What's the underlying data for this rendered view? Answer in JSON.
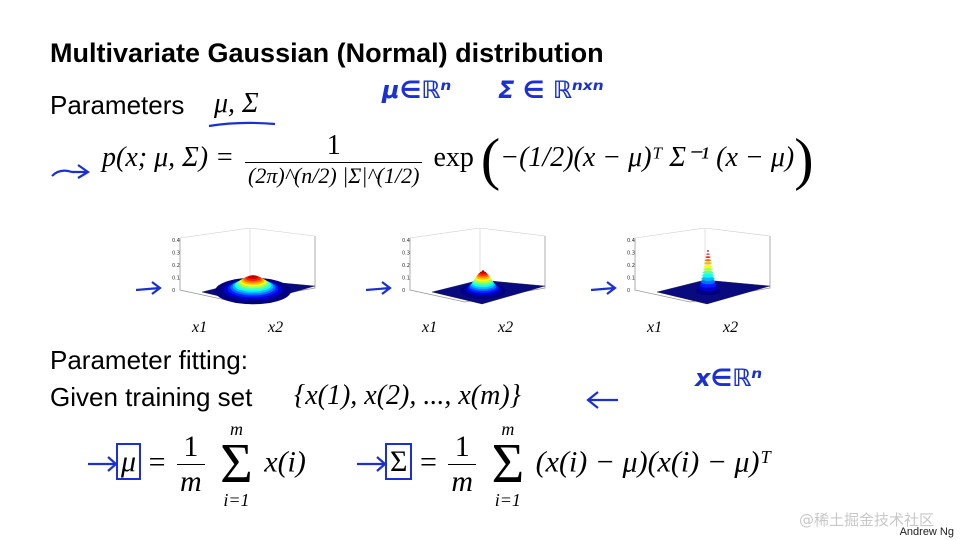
{
  "slide": {
    "title": "Multivariate Gaussian (Normal) distribution",
    "parameters_label": "Parameters",
    "parameters_symbols": "μ, Σ",
    "fitting_label": "Parameter fitting:",
    "training_label": "Given training set",
    "training_set": "{x(1), x(2), ..., x(m)}",
    "footer_author": "Andrew Ng",
    "watermark": "@稀土掘金技术社区"
  },
  "density_formula": {
    "lhs": "p(x; μ, Σ) =",
    "numerator": "1",
    "denominator": "(2π)^(n/2) |Σ|^(1/2)",
    "exp": "exp",
    "exponent": "−(1/2)(x − μ)ᵀ Σ⁻¹ (x − μ)"
  },
  "mu_formula": {
    "lhs": "μ",
    "num": "1",
    "den": "m",
    "sum_top": "m",
    "sum_bottom": "i=1",
    "term": "x(i)"
  },
  "sigma_formula": {
    "lhs": "Σ",
    "num": "1",
    "den": "m",
    "sum_top": "m",
    "sum_bottom": "i=1",
    "term": "(x(i) − μ)(x(i) − μ)ᵀ"
  },
  "plots": [
    {
      "x_axis": "x1",
      "y_axis": "x2",
      "z_ticks": [
        "0.4",
        "0.3",
        "0.2",
        "0.1",
        "0"
      ],
      "peak": 0.12,
      "spread": "wide"
    },
    {
      "x_axis": "x1",
      "y_axis": "x2",
      "z_ticks": [
        "0.4",
        "0.3",
        "0.2",
        "0.1",
        "0"
      ],
      "peak": 0.16,
      "spread": "medium"
    },
    {
      "x_axis": "x1",
      "y_axis": "x2",
      "z_ticks": [
        "0.4",
        "0.3",
        "0.2",
        "0.1",
        "0"
      ],
      "peak": 0.32,
      "spread": "narrow"
    }
  ],
  "annotations": {
    "mu_in_R": "μ∈ℝⁿ",
    "sigma_in_R": "Σ ∈ ℝⁿˣⁿ",
    "x_in_R": "x∈ℝⁿ"
  },
  "colors": {
    "ink": "#1b2fd6",
    "text": "#000000",
    "watermark": "#c8c8c8"
  }
}
